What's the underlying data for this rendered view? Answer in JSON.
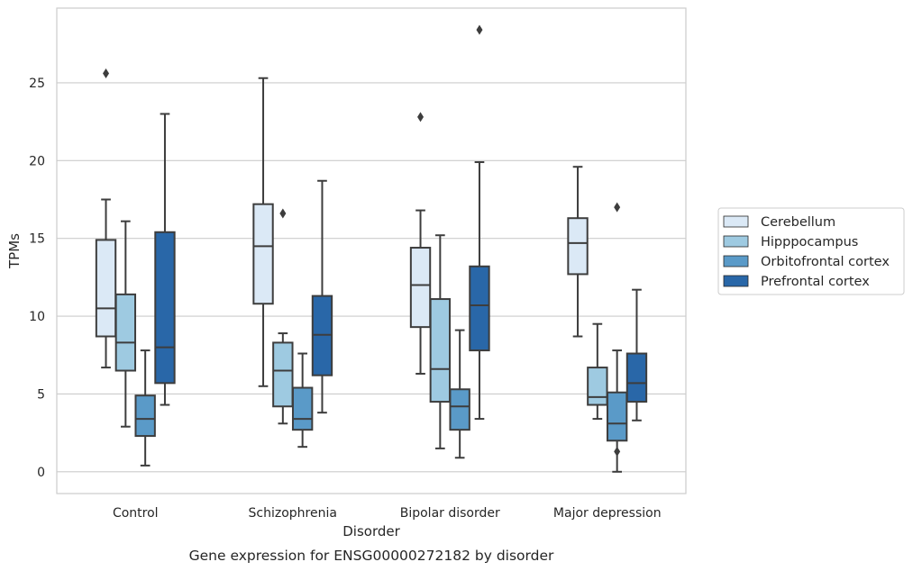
{
  "chart_data": {
    "type": "box",
    "xlabel": "Disorder",
    "ylabel": "TPMs",
    "caption": "Gene expression for ENSG00000272182 by disorder",
    "categories": [
      "Control",
      "Schizophrenia",
      "Bipolar disorder",
      "Major depression"
    ],
    "ylim": [
      -1.4,
      29.8
    ],
    "yticks": [
      0,
      5,
      10,
      15,
      20,
      25
    ],
    "grid": true,
    "legend_position": "right",
    "series": [
      {
        "name": "Cerebellum",
        "color": "#dbe9f6",
        "boxes": [
          {
            "whisker_low": 6.7,
            "q1": 8.7,
            "median": 10.5,
            "q3": 14.9,
            "whisker_high": 17.5,
            "outliers": [
              25.6
            ]
          },
          {
            "whisker_low": 5.5,
            "q1": 10.8,
            "median": 14.5,
            "q3": 17.2,
            "whisker_high": 25.3,
            "outliers": []
          },
          {
            "whisker_low": 6.3,
            "q1": 9.3,
            "median": 12.0,
            "q3": 14.4,
            "whisker_high": 16.8,
            "outliers": [
              22.8
            ]
          },
          {
            "whisker_low": 8.7,
            "q1": 12.7,
            "median": 14.7,
            "q3": 16.3,
            "whisker_high": 19.6,
            "outliers": []
          }
        ]
      },
      {
        "name": "Hipppocampus",
        "color": "#9ecae1",
        "boxes": [
          {
            "whisker_low": 2.9,
            "q1": 6.5,
            "median": 8.3,
            "q3": 11.4,
            "whisker_high": 16.1,
            "outliers": []
          },
          {
            "whisker_low": 3.1,
            "q1": 4.2,
            "median": 6.5,
            "q3": 8.3,
            "whisker_high": 8.9,
            "outliers": [
              16.6
            ]
          },
          {
            "whisker_low": 1.5,
            "q1": 4.5,
            "median": 6.6,
            "q3": 11.1,
            "whisker_high": 15.2,
            "outliers": []
          },
          {
            "whisker_low": 3.4,
            "q1": 4.3,
            "median": 4.8,
            "q3": 6.7,
            "whisker_high": 9.5,
            "outliers": []
          }
        ]
      },
      {
        "name": "Orbitofrontal cortex",
        "color": "#5a9ac8",
        "boxes": [
          {
            "whisker_low": 0.4,
            "q1": 2.3,
            "median": 3.4,
            "q3": 4.9,
            "whisker_high": 7.8,
            "outliers": []
          },
          {
            "whisker_low": 1.6,
            "q1": 2.7,
            "median": 3.4,
            "q3": 5.4,
            "whisker_high": 7.6,
            "outliers": []
          },
          {
            "whisker_low": 0.9,
            "q1": 2.7,
            "median": 4.2,
            "q3": 5.3,
            "whisker_high": 9.1,
            "outliers": []
          },
          {
            "whisker_low": 0.0,
            "q1": 2.0,
            "median": 3.1,
            "q3": 5.1,
            "whisker_high": 7.8,
            "outliers": [
              1.3,
              17.0
            ]
          }
        ]
      },
      {
        "name": "Prefrontal cortex",
        "color": "#2967a8",
        "boxes": [
          {
            "whisker_low": 4.3,
            "q1": 5.7,
            "median": 8.0,
            "q3": 15.4,
            "whisker_high": 23.0,
            "outliers": []
          },
          {
            "whisker_low": 3.8,
            "q1": 6.2,
            "median": 8.8,
            "q3": 11.3,
            "whisker_high": 18.7,
            "outliers": []
          },
          {
            "whisker_low": 3.4,
            "q1": 7.8,
            "median": 10.7,
            "q3": 13.2,
            "whisker_high": 19.9,
            "outliers": [
              28.4
            ]
          },
          {
            "whisker_low": 3.3,
            "q1": 4.5,
            "median": 5.7,
            "q3": 7.6,
            "whisker_high": 11.7,
            "outliers": []
          }
        ]
      }
    ]
  }
}
